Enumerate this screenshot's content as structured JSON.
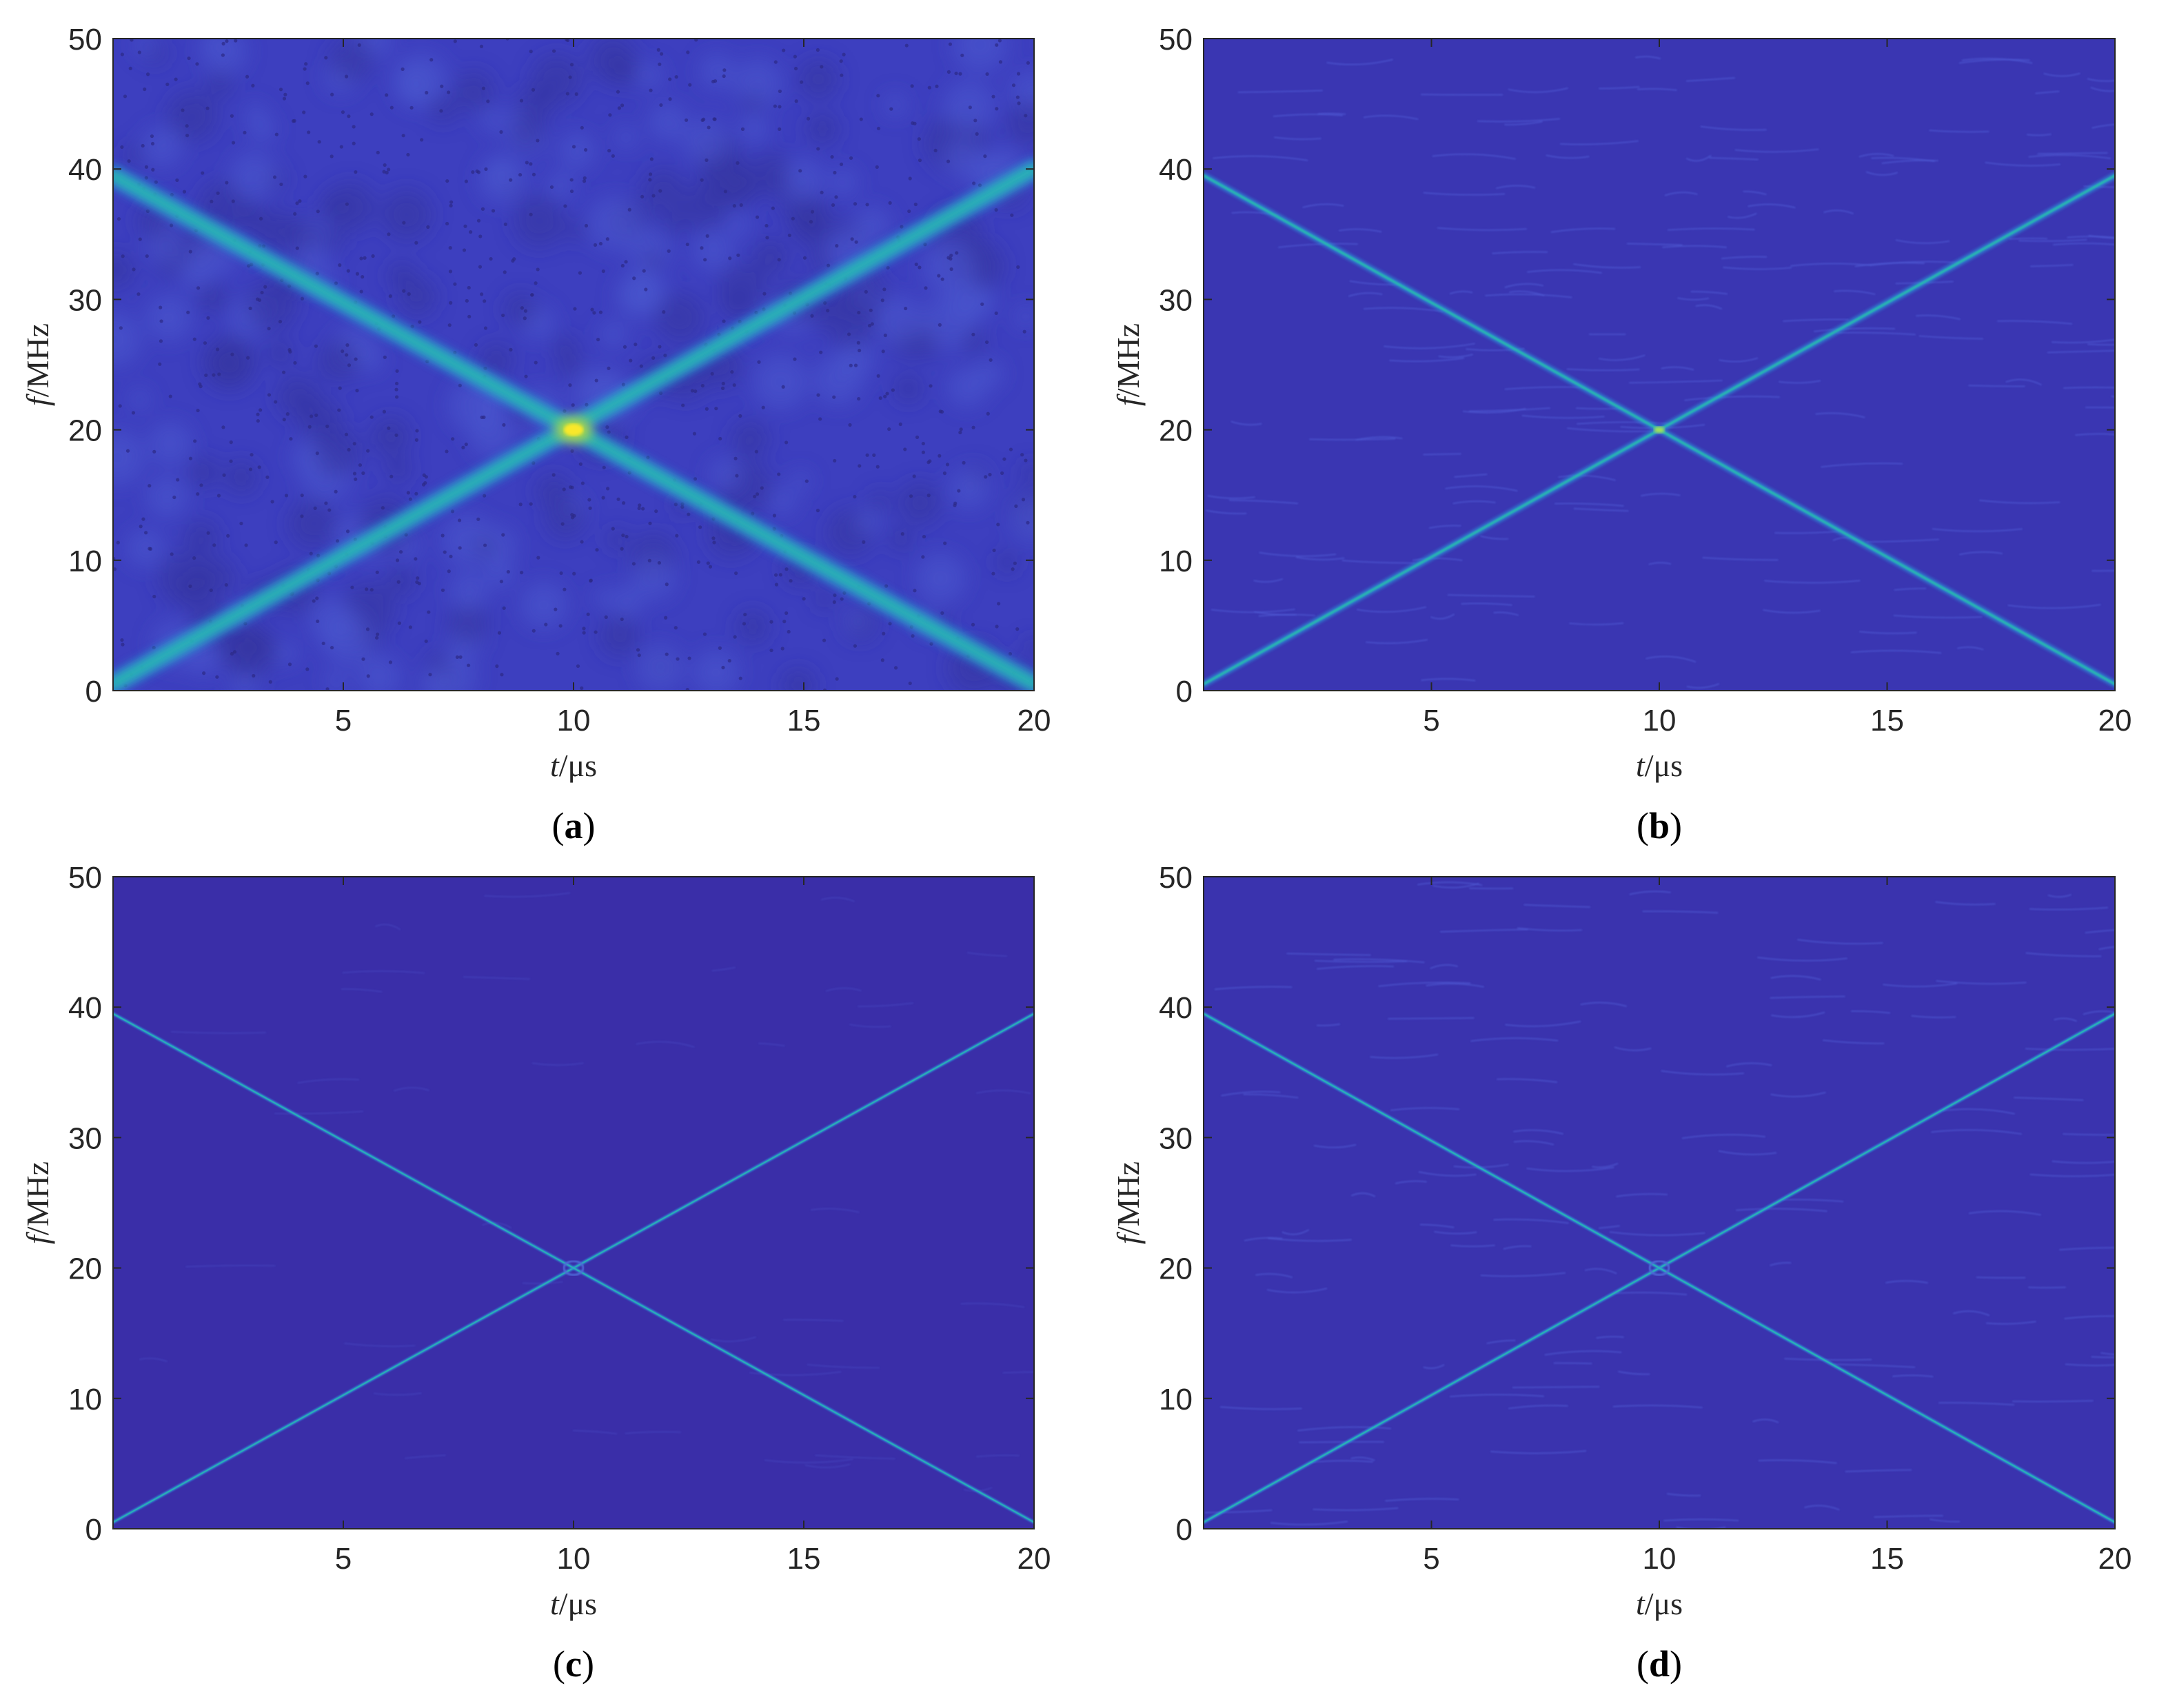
{
  "colors": {
    "background_a": "#3d3fbf",
    "background_b": "#3a36b2",
    "background_c": "#3a2ea8",
    "background_d": "#3a33ae",
    "line_low": "#2f8ed8",
    "line_mid": "#27c2aa",
    "peak": "#f9e82a"
  },
  "chart_data": [
    {
      "id": "a",
      "type": "heatmap",
      "caption_letter": "a",
      "xlabel_var": "t",
      "xlabel_unit": "/μs",
      "ylabel_var": "f",
      "ylabel_unit": "/MHz",
      "xlim": [
        0,
        20
      ],
      "ylim": [
        0,
        50
      ],
      "xticks": [
        5,
        10,
        15,
        20
      ],
      "yticks": [
        0,
        10,
        20,
        30,
        40,
        50
      ],
      "lines": [
        {
          "x": [
            0,
            20
          ],
          "y": [
            0.5,
            40
          ]
        },
        {
          "x": [
            0,
            20
          ],
          "y": [
            39.5,
            0.5
          ]
        }
      ],
      "intersection": {
        "x": 10,
        "y": 20
      },
      "style": "wide"
    },
    {
      "id": "b",
      "type": "heatmap",
      "caption_letter": "b",
      "xlabel_var": "t",
      "xlabel_unit": "/μs",
      "ylabel_var": "f",
      "ylabel_unit": "/MHz",
      "xlim": [
        0,
        20
      ],
      "ylim": [
        0,
        50
      ],
      "xticks": [
        5,
        10,
        15,
        20
      ],
      "yticks": [
        0,
        10,
        20,
        30,
        40,
        50
      ],
      "lines": [
        {
          "x": [
            0,
            20
          ],
          "y": [
            0.5,
            39.5
          ]
        },
        {
          "x": [
            0,
            20
          ],
          "y": [
            39.5,
            0.5
          ]
        }
      ],
      "intersection": {
        "x": 10,
        "y": 20
      },
      "style": "medium"
    },
    {
      "id": "c",
      "type": "heatmap",
      "caption_letter": "c",
      "xlabel_var": "t",
      "xlabel_unit": "/μs",
      "ylabel_var": "f",
      "ylabel_unit": "/MHz",
      "xlim": [
        0,
        20
      ],
      "ylim": [
        0,
        50
      ],
      "xticks": [
        5,
        10,
        15,
        20
      ],
      "yticks": [
        0,
        10,
        20,
        30,
        40,
        50
      ],
      "lines": [
        {
          "x": [
            0,
            20
          ],
          "y": [
            0.5,
            39.5
          ]
        },
        {
          "x": [
            0,
            20
          ],
          "y": [
            39.5,
            0.5
          ]
        }
      ],
      "intersection": {
        "x": 10,
        "y": 20
      },
      "style": "thin"
    },
    {
      "id": "d",
      "type": "heatmap",
      "caption_letter": "d",
      "xlabel_var": "t",
      "xlabel_unit": "/μs",
      "ylabel_var": "f",
      "ylabel_unit": "/MHz",
      "xlim": [
        0,
        20
      ],
      "ylim": [
        0,
        50
      ],
      "xticks": [
        5,
        10,
        15,
        20
      ],
      "yticks": [
        0,
        10,
        20,
        30,
        40,
        50
      ],
      "lines": [
        {
          "x": [
            0,
            20
          ],
          "y": [
            0.5,
            39.5
          ]
        },
        {
          "x": [
            0,
            20
          ],
          "y": [
            39.5,
            0.5
          ]
        }
      ],
      "intersection": {
        "x": 10,
        "y": 20
      },
      "style": "thin-textured"
    }
  ]
}
